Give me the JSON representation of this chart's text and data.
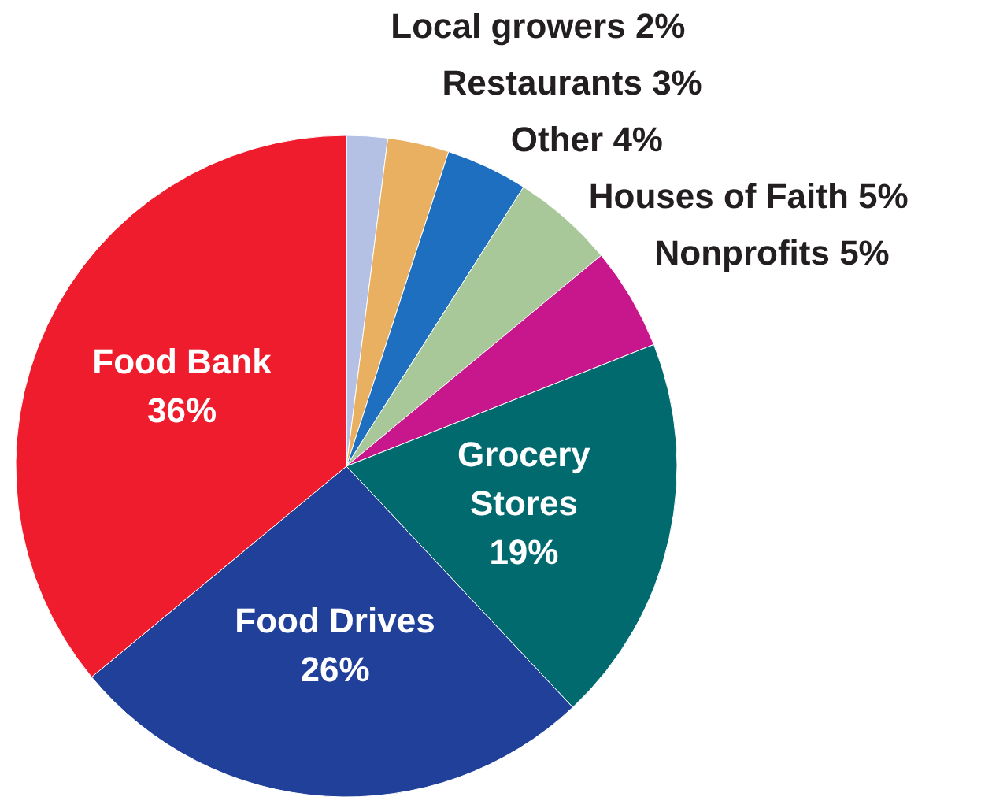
{
  "chart_data": {
    "type": "pie",
    "categories": [
      "Local growers",
      "Restaurants",
      "Other",
      "Houses of Faith",
      "Nonprofits",
      "Grocery Stores",
      "Food Drives",
      "Food Bank"
    ],
    "values": [
      2,
      3,
      4,
      5,
      5,
      19,
      26,
      36
    ],
    "colors": [
      "#b4c0e4",
      "#e8b060",
      "#1e6fc0",
      "#a8c89a",
      "#c8168c",
      "#006a6e",
      "#20409a",
      "#ee1c2c"
    ],
    "value_labels": [
      "2%",
      "3%",
      "4%",
      "5%",
      "5%",
      "19%",
      "26%",
      "36%"
    ]
  }
}
